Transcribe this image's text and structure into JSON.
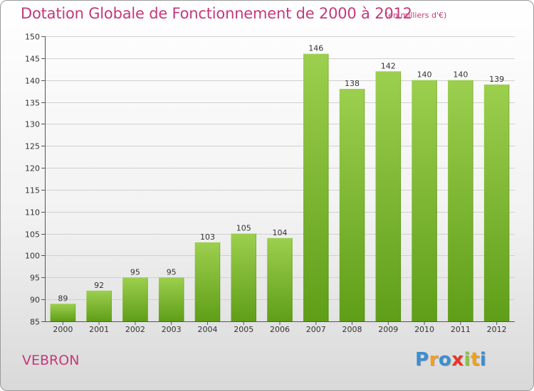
{
  "colors": {
    "accent": "#c5387a",
    "bar_light": "#9ccf4e",
    "bar_dark": "#5f9e18",
    "grid": "#d0d0d0"
  },
  "header": {
    "title": "Dotation Globale de Fonctionnement de 2000 à 2012",
    "unit": "(en milliers d'€)"
  },
  "footer": {
    "commune": "VEBRON",
    "brand_letters": [
      {
        "char": "P",
        "color": "#3a8fd0"
      },
      {
        "char": "r",
        "color": "#f0a020"
      },
      {
        "char": "o",
        "color": "#3a8fd0"
      },
      {
        "char": "x",
        "color": "#e8352a"
      },
      {
        "char": "i",
        "color": "#8cc43c"
      },
      {
        "char": "t",
        "color": "#f0a020"
      },
      {
        "char": "i",
        "color": "#3a8fd0"
      }
    ]
  },
  "chart_data": {
    "type": "bar",
    "title": "Dotation Globale de Fonctionnement de 2000 à 2012",
    "subtitle": "(en milliers d'€)",
    "categories": [
      "2000",
      "2001",
      "2002",
      "2003",
      "2004",
      "2005",
      "2006",
      "2007",
      "2008",
      "2009",
      "2010",
      "2011",
      "2012"
    ],
    "values": [
      89,
      92,
      95,
      95,
      103,
      105,
      104,
      146,
      138,
      142,
      140,
      140,
      139
    ],
    "ylim": [
      85,
      150
    ],
    "yticks": [
      85,
      90,
      95,
      100,
      105,
      110,
      115,
      120,
      125,
      130,
      135,
      140,
      145,
      150
    ],
    "grid": true,
    "xlabel": "",
    "ylabel": ""
  }
}
